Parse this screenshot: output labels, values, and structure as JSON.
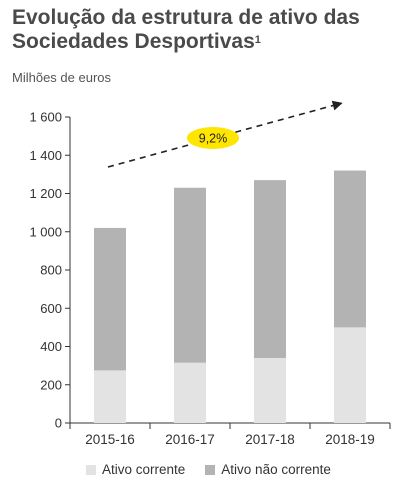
{
  "title_main": "Evolução da estrutura de ativo das Sociedades Desportivas",
  "title_sup": "1",
  "subtitle": "Milhões de euros",
  "colors": {
    "ativo_corrente": "#e3e3e3",
    "ativo_nao_corrente": "#b3b3b3",
    "callout": "#ffe600",
    "axis": "#333333"
  },
  "chart_data": {
    "type": "bar",
    "stacked": true,
    "categories": [
      "2015-16",
      "2016-17",
      "2017-18",
      "2018-19"
    ],
    "series": [
      {
        "name": "Ativo corrente",
        "values": [
          275,
          315,
          340,
          500
        ]
      },
      {
        "name": "Ativo não corrente",
        "values": [
          745,
          915,
          930,
          820
        ]
      }
    ],
    "totals": [
      1020,
      1230,
      1270,
      1320
    ],
    "ylim": [
      0,
      1600
    ],
    "yticks": [
      "0",
      "200",
      "400",
      "600",
      "800",
      "1 000",
      "1 200",
      "1 400",
      "1 600"
    ],
    "annotation": "9,2%",
    "legend_position": "bottom",
    "grid": false
  }
}
